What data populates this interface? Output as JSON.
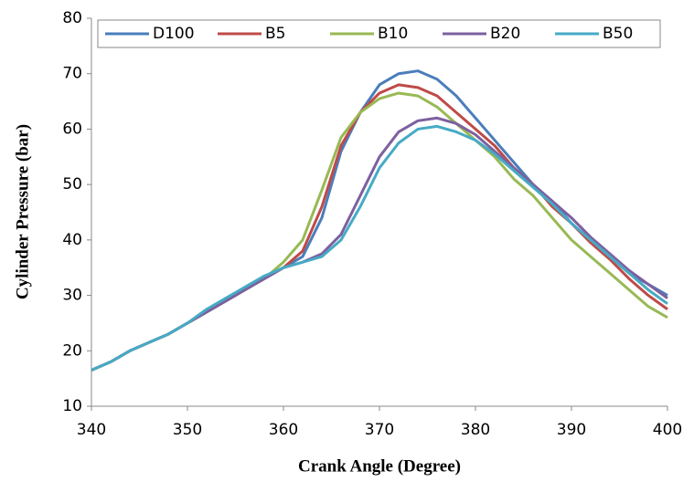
{
  "chart_data": {
    "type": "line",
    "xlabel": "Crank Angle (Degree)",
    "ylabel": "Cylinder Pressure (bar)",
    "x": [
      340,
      342,
      344,
      346,
      348,
      350,
      352,
      354,
      356,
      358,
      360,
      362,
      364,
      366,
      368,
      370,
      372,
      374,
      376,
      378,
      380,
      382,
      384,
      386,
      388,
      390,
      392,
      394,
      396,
      398,
      400
    ],
    "series": [
      {
        "name": "D100",
        "color": "#4a7ebb",
        "values": [
          16.5,
          18,
          20,
          21.5,
          23,
          25,
          27,
          29,
          31,
          33,
          35,
          37,
          44,
          56,
          63,
          68,
          70,
          70.5,
          69,
          66,
          62,
          58,
          54,
          50,
          47,
          43,
          40,
          37,
          34,
          32,
          30
        ]
      },
      {
        "name": "B5",
        "color": "#be4b48",
        "values": [
          16.5,
          18,
          20,
          21.5,
          23,
          25,
          27,
          29,
          31,
          33,
          35,
          38,
          46,
          57,
          63,
          66.5,
          68,
          67.5,
          66,
          63,
          60,
          57,
          53,
          50,
          46,
          43,
          39.5,
          36.5,
          33,
          30,
          27.5
        ]
      },
      {
        "name": "B10",
        "color": "#98b954",
        "values": [
          16.5,
          18,
          20,
          21.5,
          23,
          25,
          27,
          29,
          31,
          33,
          36,
          40,
          49,
          58.5,
          63,
          65.5,
          66.5,
          66,
          64,
          61,
          58,
          55,
          51,
          48,
          44,
          40,
          37,
          34,
          31,
          28,
          26
        ]
      },
      {
        "name": "B20",
        "color": "#7d60a0",
        "values": [
          16.5,
          18,
          20,
          21.5,
          23,
          25,
          27,
          29,
          31,
          33,
          35,
          36,
          37.5,
          41,
          48,
          55,
          59.5,
          61.5,
          62,
          61,
          59,
          56,
          53,
          50,
          47,
          44,
          40.5,
          37.5,
          34.5,
          32,
          29.5
        ]
      },
      {
        "name": "B50",
        "color": "#46aac5",
        "values": [
          16.5,
          18,
          20,
          21.5,
          23,
          25,
          27.5,
          29.5,
          31.5,
          33.5,
          35,
          36,
          37,
          40,
          46,
          53,
          57.5,
          60,
          60.5,
          59.5,
          58,
          55.5,
          52.5,
          49.5,
          46.5,
          43,
          40,
          37,
          34,
          31,
          28.5
        ]
      }
    ],
    "xlim": [
      340,
      400
    ],
    "xticks": [
      340,
      350,
      360,
      370,
      380,
      390,
      400
    ],
    "ylim": [
      10,
      80
    ],
    "yticks": [
      10,
      20,
      30,
      40,
      50,
      60,
      70,
      80
    ],
    "grid": false,
    "legend": "top"
  }
}
